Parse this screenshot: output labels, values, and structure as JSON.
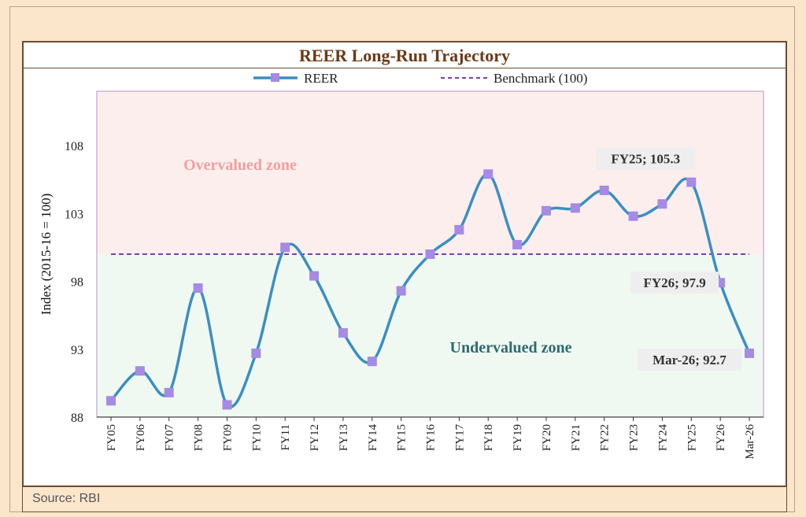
{
  "title": "REER Long-Run Trajectory",
  "source": "Source: RBI",
  "colors": {
    "line": "#3b8fc0",
    "marker": "#a58be3",
    "benchmark": "#7b3fb0",
    "overvalued_bg": "#fdeeee",
    "undervalued_bg": "#f0f8f2"
  },
  "chart_data": {
    "type": "line",
    "ylabel": "Index (2015-16 = 100)",
    "ylim": [
      88,
      112
    ],
    "yticks": [
      88,
      93,
      98,
      103,
      108
    ],
    "categories": [
      "FY05",
      "FY06",
      "FY07",
      "FY08",
      "FY09",
      "FY10",
      "FY11",
      "FY12",
      "FY13",
      "FY14",
      "FY15",
      "FY16",
      "FY17",
      "FY18",
      "FY19",
      "FY20",
      "FY21",
      "FY22",
      "FY23",
      "FY24",
      "FY25",
      "FY26",
      "Mar-26"
    ],
    "series": [
      {
        "name": "REER",
        "values": [
          89.2,
          91.4,
          89.8,
          97.5,
          88.9,
          92.7,
          100.5,
          98.4,
          94.2,
          92.1,
          97.3,
          100.0,
          101.8,
          105.9,
          100.7,
          103.2,
          103.4,
          104.7,
          102.8,
          103.7,
          105.3,
          97.9,
          92.7
        ]
      },
      {
        "name": "Benchmark (100)",
        "values": [
          100,
          100,
          100,
          100,
          100,
          100,
          100,
          100,
          100,
          100,
          100,
          100,
          100,
          100,
          100,
          100,
          100,
          100,
          100,
          100,
          100,
          100,
          100
        ]
      }
    ],
    "legend": [
      {
        "label": "REER"
      },
      {
        "label": "Benchmark (100)"
      }
    ],
    "zones": {
      "over": "Overvalued zone",
      "under": "Undervalued zone"
    },
    "annotations": [
      {
        "index": 20,
        "text": "FY25; 105.3"
      },
      {
        "index": 21,
        "text": "FY26; 97.9"
      },
      {
        "index": 22,
        "text": "Mar-26; 92.7"
      }
    ],
    "grid": false,
    "legend_position": "top"
  }
}
